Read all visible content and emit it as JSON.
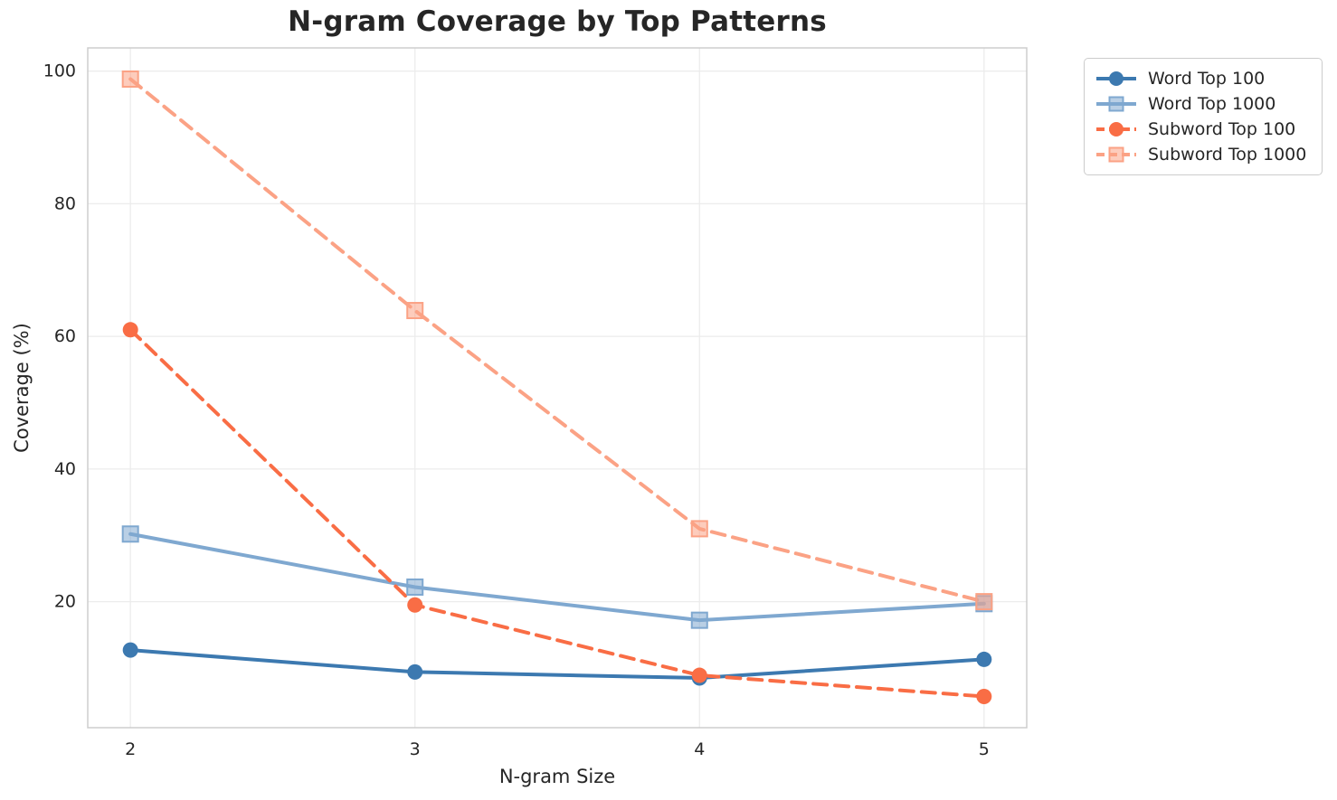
{
  "title": "N-gram Coverage by Top Patterns",
  "axes": {
    "xlabel": "N-gram Size",
    "ylabel": "Coverage (%)"
  },
  "legend": {
    "position": "outside-top-right",
    "labels": [
      "Word Top 100",
      "Word Top 1000",
      "Subword Top 100",
      "Subword Top 1000"
    ]
  },
  "colors": {
    "text": "#262626",
    "grid": "#ececec",
    "plot_border": "#cdcdcd",
    "background": "#ffffff"
  },
  "chart_data": {
    "type": "line",
    "title": "N-gram Coverage by Top Patterns",
    "xlabel": "N-gram Size",
    "ylabel": "Coverage (%)",
    "x": [
      2,
      3,
      4,
      5
    ],
    "series": [
      {
        "name": "Word Top 100",
        "values": [
          12.7,
          9.4,
          8.5,
          11.3
        ],
        "color": "#3C79B0",
        "marker": "circle",
        "line_style": "solid"
      },
      {
        "name": "Word Top 1000",
        "values": [
          30.2,
          22.2,
          17.2,
          19.7
        ],
        "color": "#7FA8D0",
        "marker": "square",
        "line_style": "solid"
      },
      {
        "name": "Subword Top 100",
        "values": [
          61.0,
          19.5,
          8.9,
          5.7
        ],
        "color": "#F96D45",
        "marker": "circle",
        "line_style": "dashed"
      },
      {
        "name": "Subword Top 1000",
        "values": [
          98.8,
          63.9,
          31.0,
          20.0
        ],
        "color": "#FBA285",
        "marker": "square",
        "line_style": "dashed"
      }
    ],
    "xticks": [
      2,
      3,
      4,
      5
    ],
    "yticks": [
      20,
      40,
      60,
      80,
      100
    ],
    "xlim": [
      1.85,
      5.15
    ],
    "ylim": [
      1.0,
      103.5
    ],
    "grid": true,
    "legend_position": "outside-top-right"
  }
}
